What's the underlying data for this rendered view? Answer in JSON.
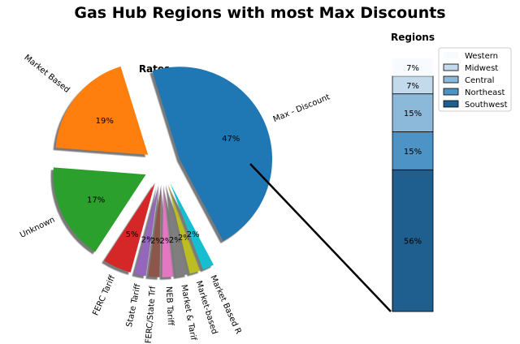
{
  "title": "Gas Hub Regions with most Max Discounts",
  "chart_data": [
    {
      "type": "pie",
      "title": "Rates",
      "exploded": true,
      "shadow": true,
      "slices": [
        {
          "label": "Max - Discount",
          "value": 47,
          "pct_label": "47%",
          "color": "#1f77b4"
        },
        {
          "label": "Market Based",
          "value": 19,
          "pct_label": "19%",
          "color": "#ff7f0e"
        },
        {
          "label": "Unknown",
          "value": 17,
          "pct_label": "17%",
          "color": "#2ca02c"
        },
        {
          "label": "FERC Tariff",
          "value": 5,
          "pct_label": "5%",
          "color": "#d62728"
        },
        {
          "label": "State Tariff",
          "value": 2,
          "pct_label": "2%",
          "color": "#9467bd"
        },
        {
          "label": "FERC/State Trf",
          "value": 2,
          "pct_label": "2%",
          "color": "#8c564b"
        },
        {
          "label": "NEB Tariff",
          "value": 2,
          "pct_label": "2%",
          "color": "#e377c2"
        },
        {
          "label": "Market & Tarif",
          "value": 2,
          "pct_label": "2%",
          "color": "#7f7f7f"
        },
        {
          "label": "Market-based",
          "value": 2,
          "pct_label": "2%",
          "color": "#bcbd22"
        },
        {
          "label": "Market Based R",
          "value": 2,
          "pct_label": "2%",
          "color": "#17becf"
        }
      ]
    },
    {
      "type": "bar",
      "stacked": true,
      "title": "Regions",
      "legend_placement": "right",
      "series": [
        {
          "name": "Southwest",
          "value": 56,
          "pct_label": "56%",
          "color": "#1f5f8f"
        },
        {
          "name": "Northeast",
          "value": 15,
          "pct_label": "15%",
          "color": "#4e93c6"
        },
        {
          "name": "Central",
          "value": 15,
          "pct_label": "15%",
          "color": "#8cb8da"
        },
        {
          "name": "Midwest",
          "value": 7,
          "pct_label": "7%",
          "color": "#c3d9ec"
        },
        {
          "name": "Western",
          "value": 7,
          "pct_label": "7%",
          "color": "#f7fbff"
        }
      ]
    }
  ]
}
